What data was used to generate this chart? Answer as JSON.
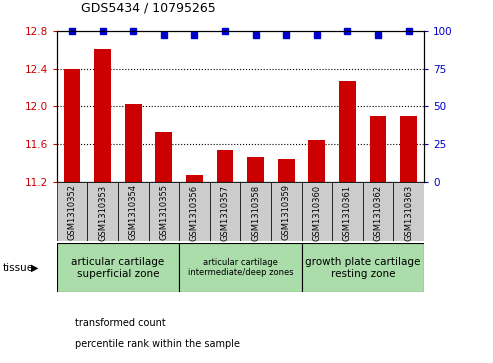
{
  "title": "GDS5434 / 10795265",
  "samples": [
    "GSM1310352",
    "GSM1310353",
    "GSM1310354",
    "GSM1310355",
    "GSM1310356",
    "GSM1310357",
    "GSM1310358",
    "GSM1310359",
    "GSM1310360",
    "GSM1310361",
    "GSM1310362",
    "GSM1310363"
  ],
  "bar_values": [
    12.39,
    12.61,
    12.02,
    11.73,
    11.27,
    11.53,
    11.46,
    11.44,
    11.64,
    12.27,
    11.9,
    11.9
  ],
  "percentile_values": [
    100,
    100,
    100,
    97,
    97,
    100,
    97,
    97,
    97,
    100,
    97,
    100
  ],
  "bar_color": "#cc0000",
  "dot_color": "#0000cc",
  "ylim_left": [
    11.2,
    12.8
  ],
  "ylim_right": [
    0,
    100
  ],
  "yticks_left": [
    11.2,
    11.6,
    12.0,
    12.4,
    12.8
  ],
  "yticks_right": [
    0,
    25,
    50,
    75,
    100
  ],
  "group_info": [
    {
      "label": "articular cartilage\nsuperficial zone",
      "start": 0,
      "end": 3,
      "fontsize": 7.5
    },
    {
      "label": "articular cartilage\nintermediate/deep zones",
      "start": 4,
      "end": 7,
      "fontsize": 6.0
    },
    {
      "label": "growth plate cartilage\nresting zone",
      "start": 8,
      "end": 11,
      "fontsize": 7.5
    }
  ],
  "legend_red_label": "transformed count",
  "legend_blue_label": "percentile rank within the sample",
  "tissue_label": "tissue",
  "tick_label_color_left": "#cc0000",
  "tick_label_color_right": "#0000cc",
  "gray_box_color": "#cccccc",
  "green_box_color": "#aaddaa"
}
